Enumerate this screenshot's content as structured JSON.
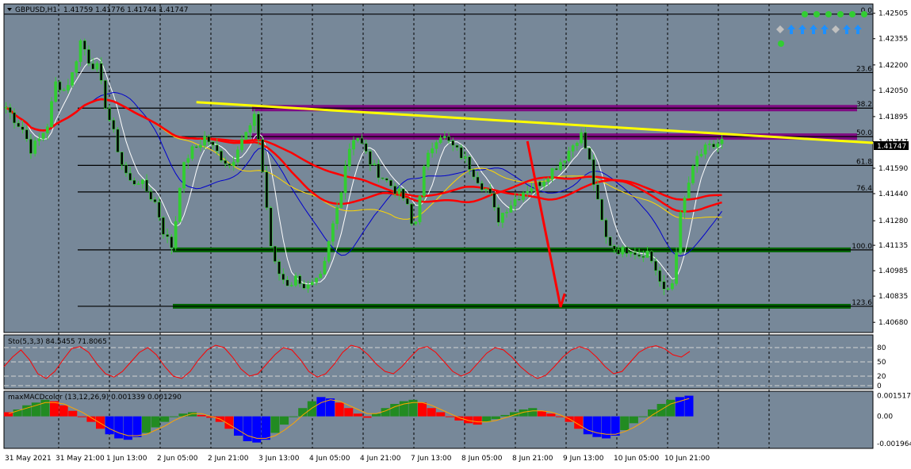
{
  "header": {
    "symbol": "GBPUSD,H1",
    "ohlc": "1.41759 1.41776 1.41744 1.41747"
  },
  "colors": {
    "background": "#778899",
    "bull_candle": "#32cd32",
    "bear_candle": "#000000",
    "fib_line": "#000000",
    "trend_line": "#ffff00",
    "resistance_zone": "#800080",
    "support_zone": "#006400",
    "forecast_arrow": "#ff0000",
    "ma_red": "#ff0000",
    "ma_blue": "#0000cd",
    "ma_yellow": "#ffd700",
    "ma_white": "#ffffff",
    "macd_green": "#228b22",
    "macd_red": "#ff0000",
    "macd_blue": "#0000ff",
    "signal_up": "#1e90ff",
    "signal_dot": "#32cd32",
    "signal_diamond": "#c0c0c0"
  },
  "chart_data": [
    {
      "type": "candlestick",
      "ylim": [
        1.4062,
        1.4256
      ],
      "y_ticks": [
        "1.42505",
        "1.42355",
        "1.42200",
        "1.42050",
        "1.41895",
        "1.41747",
        "1.41590",
        "1.41440",
        "1.41280",
        "1.41135",
        "1.40985",
        "1.40835",
        "1.40680"
      ],
      "current_price": "1.41747",
      "fib_levels": [
        {
          "label": "0.0",
          "price": 1.425
        },
        {
          "label": "23.6",
          "price": 1.42155
        },
        {
          "label": "38.2",
          "price": 1.41945
        },
        {
          "label": "50.0",
          "price": 1.41777
        },
        {
          "label": "61.8",
          "price": 1.41607
        },
        {
          "label": "76.4",
          "price": 1.4145
        },
        {
          "label": "100.0",
          "price": 1.41108
        },
        {
          "label": "123.6",
          "price": 1.40775
        }
      ],
      "x_labels": [
        "31 May 2021",
        "31 May 21:00",
        "1 Jun 13:00",
        "2 Jun 05:00",
        "2 Jun 21:00",
        "3 Jun 13:00",
        "4 Jun 05:00",
        "4 Jun 21:00",
        "7 Jun 13:00",
        "8 Jun 05:00",
        "8 Jun 21:00",
        "9 Jun 13:00",
        "10 Jun 05:00",
        "10 Jun 21:00"
      ],
      "close": [
        1.4195,
        1.4188,
        1.4182,
        1.417,
        1.4176,
        1.4185,
        1.421,
        1.4205,
        1.4215,
        1.4235,
        1.4222,
        1.4218,
        1.4195,
        1.4178,
        1.416,
        1.415,
        1.4152,
        1.4145,
        1.4138,
        1.412,
        1.4112,
        1.4155,
        1.4168,
        1.4172,
        1.4178,
        1.417,
        1.4165,
        1.416,
        1.4175,
        1.418,
        1.419,
        1.415,
        1.4105,
        1.4095,
        1.409,
        1.4095,
        1.4088,
        1.409,
        1.4095,
        1.412,
        1.414,
        1.4168,
        1.418,
        1.417,
        1.416,
        1.4155,
        1.415,
        1.4145,
        1.414,
        1.412,
        1.4155,
        1.417,
        1.418,
        1.4175,
        1.417,
        1.4165,
        1.4158,
        1.415,
        1.4145,
        1.4128,
        1.4135,
        1.414,
        1.4145,
        1.4148,
        1.415,
        1.4155,
        1.416,
        1.4165,
        1.4172,
        1.418,
        1.4165,
        1.414,
        1.4118,
        1.4112,
        1.411,
        1.4112,
        1.4108,
        1.411,
        1.41,
        1.4085,
        1.409,
        1.413,
        1.415,
        1.4165,
        1.417,
        1.4172,
        1.4175
      ],
      "trend_line": [
        {
          "bar": 46,
          "price": 1.4198
        },
        {
          "bar": 156,
          "price": 1.4174
        }
      ],
      "resistance_zones": [
        {
          "price": 1.41945
        },
        {
          "price": 1.41777
        }
      ],
      "support_zones": [
        {
          "price": 1.41108
        },
        {
          "price": 1.40775
        }
      ],
      "forecast_path": [
        {
          "bar": 126,
          "price": 1.4175
        },
        {
          "bar": 134,
          "price": 1.4077
        },
        {
          "bar": 135,
          "price": 1.4085
        }
      ]
    },
    {
      "type": "line",
      "title": "Sto(5,3,3) 84.5455 71.8065",
      "ylim": [
        0,
        100
      ],
      "levels": [
        "80",
        "50",
        "20",
        "0"
      ],
      "main": [
        40,
        60,
        75,
        55,
        25,
        15,
        30,
        55,
        78,
        82,
        70,
        45,
        25,
        18,
        30,
        50,
        70,
        80,
        65,
        40,
        20,
        15,
        30,
        55,
        75,
        85,
        80,
        60,
        35,
        20,
        25,
        45,
        65,
        80,
        75,
        55,
        30,
        18,
        25,
        45,
        70,
        85,
        80,
        65,
        45,
        30,
        25,
        40,
        60,
        78,
        82,
        70,
        50,
        30,
        20,
        28,
        48,
        68,
        80,
        75,
        60,
        40,
        25,
        15,
        22,
        40,
        60,
        75,
        82,
        76,
        60,
        40,
        25,
        30,
        50,
        70,
        80,
        84,
        78,
        65,
        60,
        72
      ]
    },
    {
      "type": "bar",
      "title": "maxMACDcolor (13,12,26,9) 0.001339 0.001290",
      "ylim": [
        -0.00215,
        0.00165
      ],
      "y_ticks": [
        "0.001517",
        "0.00",
        "-0.001964"
      ],
      "values": [
        0.0003,
        0.0005,
        0.0008,
        0.001,
        0.0012,
        0.0011,
        0.0008,
        0.0004,
        0.0,
        -0.0004,
        -0.0009,
        -0.0013,
        -0.0016,
        -0.0017,
        -0.0015,
        -0.0012,
        -0.0008,
        -0.0004,
        0.0,
        0.0002,
        0.0003,
        0.0001,
        -0.0001,
        -0.0004,
        -0.0009,
        -0.0014,
        -0.0018,
        -0.0019,
        -0.0017,
        -0.0012,
        -0.0006,
        0.0,
        0.0006,
        0.0011,
        0.0014,
        0.0013,
        0.001,
        0.0006,
        0.0002,
        -0.0001,
        0.0002,
        0.0006,
        0.0009,
        0.0011,
        0.0012,
        0.001,
        0.0006,
        0.0003,
        0.0,
        -0.0003,
        -0.0005,
        -0.0006,
        -0.0004,
        -0.0002,
        0.0001,
        0.0003,
        0.0005,
        0.0006,
        0.0004,
        0.0002,
        0.0,
        -0.0004,
        -0.0009,
        -0.0013,
        -0.0015,
        -0.0016,
        -0.0014,
        -0.001,
        -0.0005,
        0.0,
        0.0005,
        0.0009,
        0.0012,
        0.0014,
        0.0015
      ],
      "signal": [
        0.0002,
        0.0004,
        0.0006,
        0.0008,
        0.001,
        0.001,
        0.0009,
        0.0006,
        0.0003,
        -0.0001,
        -0.0005,
        -0.0009,
        -0.0012,
        -0.0014,
        -0.0014,
        -0.0013,
        -0.001,
        -0.0007,
        -0.0003,
        0.0,
        0.0002,
        0.0002,
        0.0,
        -0.0002,
        -0.0006,
        -0.001,
        -0.0014,
        -0.0016,
        -0.0016,
        -0.0014,
        -0.001,
        -0.0005,
        0.0001,
        0.0006,
        0.001,
        0.0012,
        0.0011,
        0.0008,
        0.0005,
        0.0002,
        0.0002,
        0.0004,
        0.0007,
        0.0009,
        0.001,
        0.001,
        0.0008,
        0.0005,
        0.0002,
        -0.0001,
        -0.0003,
        -0.0004,
        -0.0004,
        -0.0003,
        -0.0001,
        0.0001,
        0.0003,
        0.0004,
        0.0004,
        0.0003,
        0.0001,
        -0.0002,
        -0.0006,
        -0.001,
        -0.0012,
        -0.0013,
        -0.0013,
        -0.0011,
        -0.0008,
        -0.0004,
        0.0001,
        0.0005,
        0.0009,
        0.0011,
        0.0013
      ]
    }
  ],
  "signals": {
    "dots": 6,
    "arrows": [
      "diamond",
      "up",
      "up",
      "up",
      "up",
      "diamond",
      "up",
      "up"
    ]
  }
}
